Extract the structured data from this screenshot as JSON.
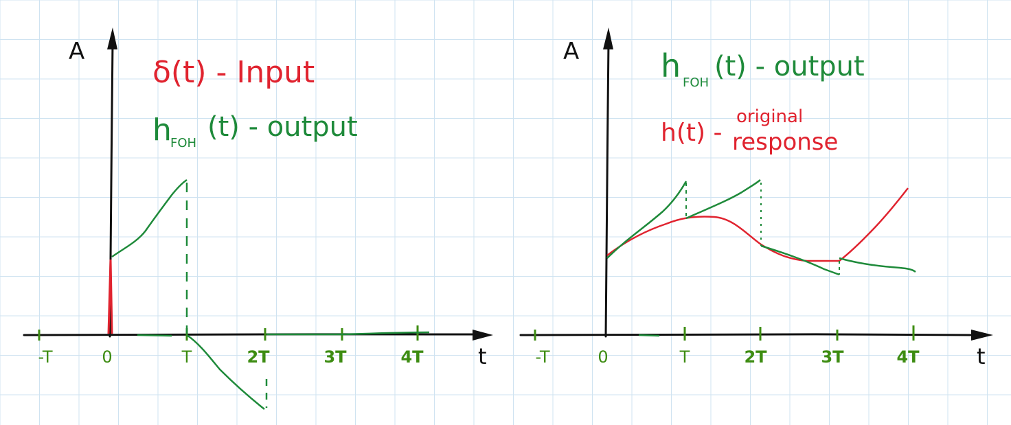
{
  "colors": {
    "grid": "#cfe3f1",
    "axis": "#111111",
    "input": "#e0232f",
    "output": "#1e8a3a",
    "tick_label": "#3d8c12"
  },
  "left_panel": {
    "y_axis_label": "A",
    "x_axis_label": "t",
    "ticks": [
      "-T",
      "0",
      "T",
      "2T",
      "3T",
      "4T"
    ],
    "legend": {
      "input_label": "δ(t) - Input",
      "output_label_main": "h",
      "output_label_sub": "FOH",
      "output_label_rest": "(t) - output"
    }
  },
  "right_panel": {
    "y_axis_label": "A",
    "x_axis_label": "t",
    "ticks": [
      "-T",
      "0",
      "T",
      "2T",
      "3T",
      "4T"
    ],
    "legend": {
      "output_label_main": "h",
      "output_label_sub": "FOH",
      "output_label_rest": "(t) - output",
      "original_label": "h(t) -",
      "original_label_line1": "original",
      "original_label_line2": "response"
    }
  }
}
